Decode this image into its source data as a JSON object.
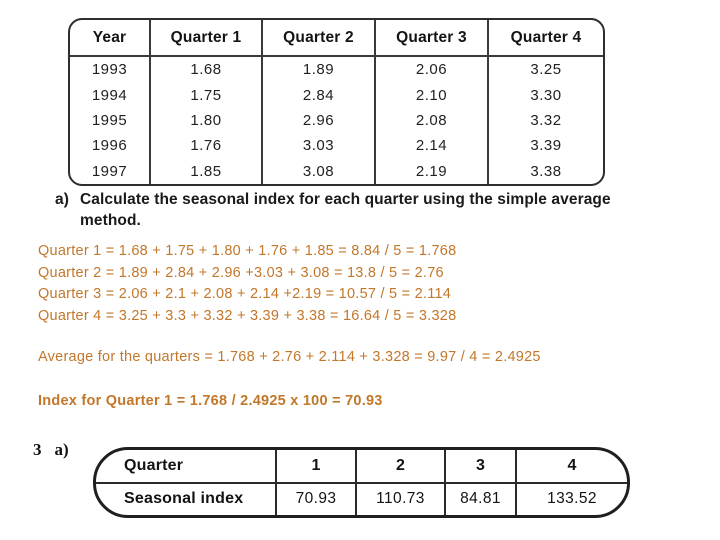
{
  "page": {
    "background": "#ffffff",
    "accent_color": "#c2772a",
    "ink_color": "#1b1b1b"
  },
  "data_table": {
    "headers": [
      "Year",
      "Quarter 1",
      "Quarter 2",
      "Quarter 3",
      "Quarter 4"
    ],
    "rows": [
      [
        "1993",
        "1.68",
        "1.89",
        "2.06",
        "3.25"
      ],
      [
        "1994",
        "1.75",
        "2.84",
        "2.10",
        "3.30"
      ],
      [
        "1995",
        "1.80",
        "2.96",
        "2.08",
        "3.32"
      ],
      [
        "1996",
        "1.76",
        "3.03",
        "2.14",
        "3.39"
      ],
      [
        "1997",
        "1.85",
        "3.08",
        "2.19",
        "3.38"
      ]
    ]
  },
  "question": {
    "label": "a)",
    "text": "Calculate the seasonal index for each quarter using the simple average method."
  },
  "solution": {
    "lines": [
      "Quarter 1 = 1.68 + 1.75 + 1.80 + 1.76 + 1.85 = 8.84 / 5 = 1.768",
      "Quarter 2 = 1.89 + 2.84 + 2.96 +3.03 + 3.08 = 13.8 / 5 = 2.76",
      "Quarter 3 = 2.06 + 2.1 + 2.08 + 2.14 +2.19 = 10.57 / 5 = 2.114",
      "Quarter 4 = 3.25 + 3.3 + 3.32 + 3.39 + 3.38 = 16.64 / 5 = 3.328"
    ],
    "average_line": "Average for the quarters = 1.768 + 2.76 + 2.114 + 3.328 = 9.97 / 4 = 2.4925",
    "index_line": "Index for Quarter 1 = 1.768 / 2.4925 x 100 = 70.93"
  },
  "answer": {
    "question_number": "3",
    "part_label": "a)",
    "table": {
      "row1_header": "Quarter",
      "row2_header": "Seasonal index",
      "quarters": [
        "1",
        "2",
        "3",
        "4"
      ],
      "values": [
        "70.93",
        "110.73",
        "84.81",
        "133.52"
      ]
    }
  }
}
